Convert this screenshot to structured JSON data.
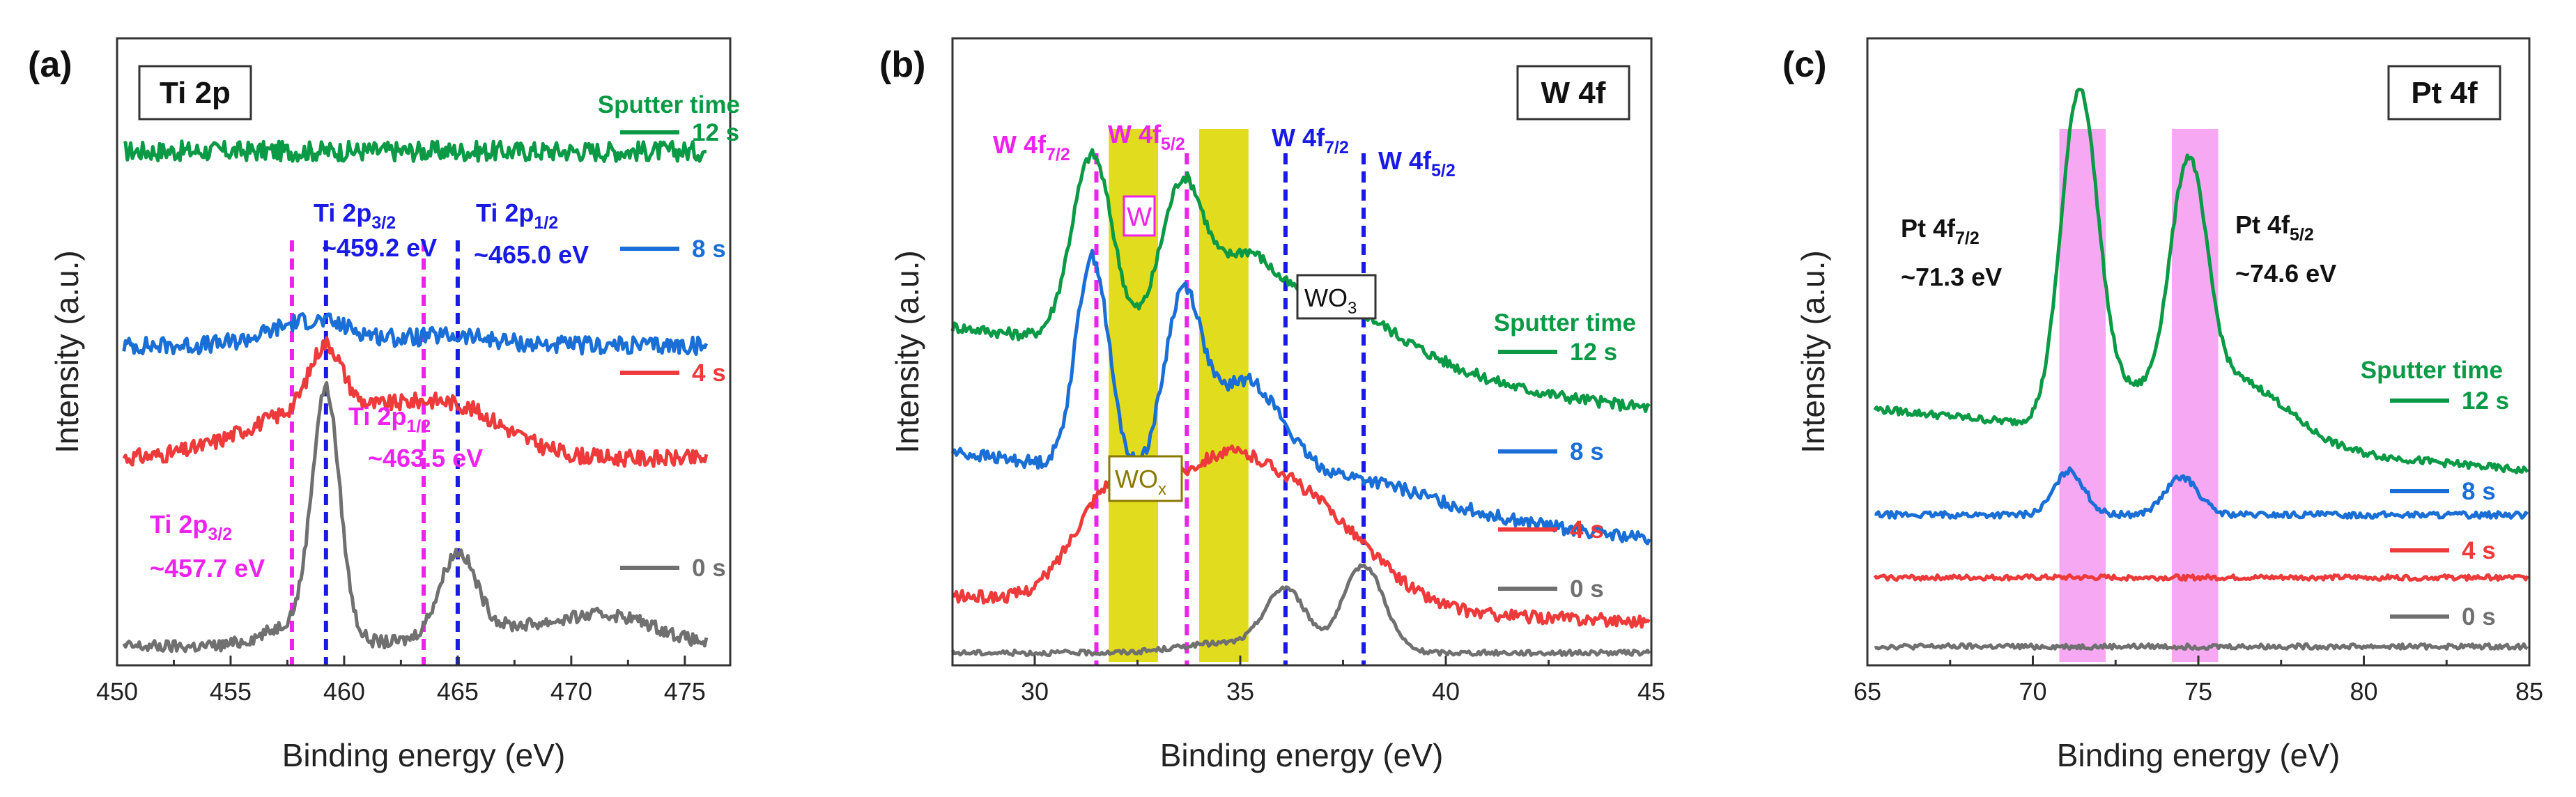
{
  "chart_data": [
    {
      "panel": "(a)",
      "type": "line",
      "title": "Ti 2p",
      "xlabel": "Binding energy (eV)",
      "ylabel": "Intensity (a.u.)",
      "xlim": [
        450,
        477
      ],
      "xticks": [
        450,
        455,
        460,
        465,
        470,
        475
      ],
      "ylim": [
        0,
        100
      ],
      "legend_title": "Sputter time",
      "series": [
        {
          "name": "12 s",
          "color": "#0a9a45",
          "offset": 82,
          "peaks": [],
          "noise": 1.6,
          "x_end": 476
        },
        {
          "name": "8 s",
          "color": "#1a6fd6",
          "offset": 51,
          "peaks": [
            [
              458.6,
              4,
              1.8
            ],
            [
              464.6,
              1.5,
              2
            ]
          ],
          "noise": 1.4,
          "x_end": 476
        },
        {
          "name": "4 s",
          "color": "#ee3a3a",
          "offset": 33,
          "peaks": [
            [
              459.2,
              10,
              0.7
            ],
            [
              458,
              6,
              2.8
            ],
            [
              465,
              6,
              2.3
            ],
            [
              462,
              4,
              3
            ]
          ],
          "noise": 1.3,
          "x_end": 476
        },
        {
          "name": "0 s",
          "color": "#707070",
          "offset": 3,
          "peaks": [
            [
              459.2,
              38,
              0.6
            ],
            [
              465.0,
              13,
              0.8
            ],
            [
              458.2,
              4,
              1.5
            ],
            [
              467.5,
              3,
              3
            ],
            [
              472,
              4,
              2
            ]
          ],
          "noise": 1.0,
          "x_end": 476
        }
      ],
      "vlines": [
        {
          "x": 457.7,
          "color": "#ee22ee"
        },
        {
          "x": 459.2,
          "color": "#1a1ae6"
        },
        {
          "x": 463.5,
          "color": "#ee22ee"
        },
        {
          "x": 465.0,
          "color": "#1a1ae6"
        }
      ],
      "annotations": [
        {
          "main": "Ti 2p",
          "sub": "3/2",
          "value": "~459.2 eV",
          "color": "#1a1ae6"
        },
        {
          "main": "Ti 2p",
          "sub": "1/2",
          "value": "~465.0 eV",
          "color": "#1a1ae6"
        },
        {
          "main": "Ti 2p",
          "sub": "1/2",
          "value": "~463.5 eV",
          "color": "#ee22ee"
        },
        {
          "main": "Ti 2p",
          "sub": "3/2",
          "value": "~457.7 eV",
          "color": "#ee22ee"
        }
      ]
    },
    {
      "panel": "(b)",
      "type": "line",
      "title": "W 4f",
      "xlabel": "Binding energy (eV)",
      "ylabel": "Intensity (a.u.)",
      "xlim": [
        28,
        45
      ],
      "xticks": [
        30,
        35,
        40,
        45
      ],
      "ylim": [
        0,
        100
      ],
      "legend_title": "Sputter time",
      "series": [
        {
          "name": "12 s",
          "color": "#0a9a45",
          "offset": 41,
          "peaks": [
            [
              31.4,
              30,
              0.5
            ],
            [
              33.6,
              26,
              0.55
            ],
            [
              35.1,
              10,
              0.6
            ],
            [
              36.5,
              8,
              1.5
            ],
            [
              38.0,
              5,
              2
            ]
          ],
          "slope": 13,
          "noise": 0.9,
          "x_end": 45
        },
        {
          "name": "8 s",
          "color": "#1a6fd6",
          "offset": 20,
          "peaks": [
            [
              31.4,
              34,
              0.4
            ],
            [
              33.6,
              28,
              0.45
            ],
            [
              34.8,
              10,
              0.7
            ],
            [
              35.6,
              8,
              0.7
            ],
            [
              37.5,
              4,
              2
            ]
          ],
          "slope": 14,
          "noise": 1.0,
          "x_end": 45
        },
        {
          "name": "4 s",
          "color": "#ee3a3a",
          "offset": 7,
          "peaks": [
            [
              31.8,
              15,
              0.9
            ],
            [
              34.3,
              20,
              1.4
            ],
            [
              36.8,
              14,
              1.5
            ]
          ],
          "slope": 4,
          "noise": 1.0,
          "x_end": 45
        },
        {
          "name": "0 s",
          "color": "#707070",
          "offset": 2,
          "peaks": [
            [
              36.1,
              10,
              0.5
            ],
            [
              38.0,
              14,
              0.5
            ],
            [
              34.5,
              1.5,
              1
            ]
          ],
          "slope": 0,
          "noise": 0.4,
          "x_end": 45
        }
      ],
      "bands": [
        {
          "x1": 31.8,
          "x2": 33.0,
          "color": "#e2dc1f"
        },
        {
          "x1": 34.0,
          "x2": 35.2,
          "color": "#e2dc1f"
        }
      ],
      "vlines": [
        {
          "x": 31.5,
          "color": "#ee22ee"
        },
        {
          "x": 33.7,
          "color": "#ee22ee"
        },
        {
          "x": 36.1,
          "color": "#1a1ae6"
        },
        {
          "x": 38.0,
          "color": "#1a1ae6"
        }
      ],
      "annotations": [
        {
          "main": "W 4f",
          "sub": "7/2",
          "color": "#ee22ee"
        },
        {
          "main": "W 4f",
          "sub": "5/2",
          "color": "#ee22ee"
        },
        {
          "main": "W 4f",
          "sub": "7/2",
          "color": "#1a1ae6"
        },
        {
          "main": "W 4f",
          "sub": "5/2",
          "color": "#1a1ae6"
        }
      ],
      "species_labels": [
        {
          "text": "W",
          "color": "#ee22ee"
        },
        {
          "text": "WO",
          "sub": "3",
          "color": "#111111"
        },
        {
          "text": "WO",
          "sub": "x",
          "color": "#8a7a00"
        }
      ]
    },
    {
      "panel": "(c)",
      "type": "line",
      "title": "Pt 4f",
      "xlabel": "Binding energy (eV)",
      "ylabel": "Intensity (a.u.)",
      "xlim": [
        65,
        85
      ],
      "xticks": [
        65,
        70,
        75,
        80,
        85
      ],
      "ylim": [
        0,
        100
      ],
      "legend_title": "Sputter time",
      "series": [
        {
          "name": "12 s",
          "color": "#0a9a45",
          "offset": 31,
          "peaks": [
            [
              71.4,
              52,
              0.55
            ],
            [
              74.7,
              38,
              0.55
            ],
            [
              76.2,
              10,
              1.5
            ],
            [
              72.8,
              6,
              1
            ]
          ],
          "slope": 10,
          "noise": 0.6,
          "x_end": 85
        },
        {
          "name": "8 s",
          "color": "#1a6fd6",
          "offset": 24,
          "peaks": [
            [
              71.1,
              7,
              0.45
            ],
            [
              74.5,
              6,
              0.5
            ]
          ],
          "slope": 0,
          "noise": 0.5,
          "x_end": 85
        },
        {
          "name": "4 s",
          "color": "#ee3a3a",
          "offset": 14,
          "peaks": [],
          "slope": 0,
          "noise": 0.4,
          "x_end": 85
        },
        {
          "name": "0 s",
          "color": "#707070",
          "offset": 3,
          "peaks": [],
          "slope": 0,
          "noise": 0.4,
          "x_end": 85
        }
      ],
      "bands": [
        {
          "x1": 70.8,
          "x2": 72.2,
          "color": "#f7a8f2"
        },
        {
          "x1": 74.2,
          "x2": 75.6,
          "color": "#f7a8f2"
        }
      ],
      "annotations": [
        {
          "main": "Pt 4f",
          "sub": "7/2",
          "value": "~71.3 eV",
          "color": "#111111"
        },
        {
          "main": "Pt 4f",
          "sub": "5/2",
          "value": "~74.6 eV",
          "color": "#111111"
        }
      ]
    }
  ]
}
